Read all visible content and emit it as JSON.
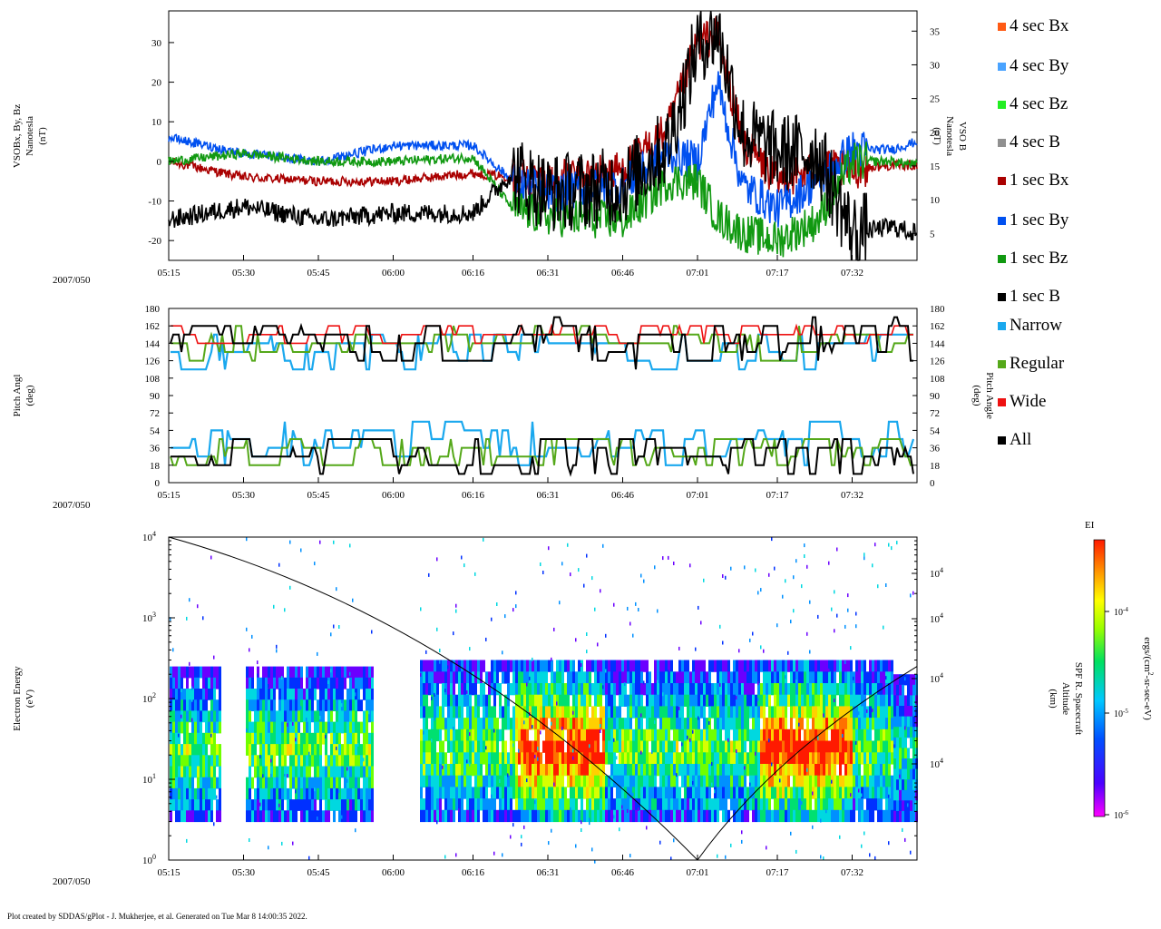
{
  "footer": "Plot created by SDDAS/gPlot - J. Mukherjee, et al.  Generated on Tue Mar 8 14:00:35 2022.",
  "date_label": "2007/050",
  "time_ticks": [
    "05:15",
    "05:30",
    "05:45",
    "06:00",
    "06:16",
    "06:31",
    "06:46",
    "07:01",
    "07:17",
    "07:32"
  ],
  "legend": [
    {
      "label": "4 sec Bx",
      "color": "#ff5a14"
    },
    {
      "label": "4 sec By",
      "color": "#4aa3ff"
    },
    {
      "label": "4 sec Bz",
      "color": "#22ee22"
    },
    {
      "label": "4 sec B",
      "color": "#909090"
    },
    {
      "label": "1 sec Bx",
      "color": "#aa0000"
    },
    {
      "label": "1 sec By",
      "color": "#0050f0"
    },
    {
      "label": "1 sec Bz",
      "color": "#119911"
    },
    {
      "label": "1 sec B",
      "color": "#000000"
    },
    {
      "label": "Narrow",
      "color": "#1aa8ee"
    },
    {
      "label": "Regular",
      "color": "#55a81a"
    },
    {
      "label": "Wide",
      "color": "#ee1111"
    },
    {
      "label": "All",
      "color": "#000000"
    }
  ],
  "chart_data": [
    {
      "type": "line",
      "ylabel_lines": [
        "VSOBx, By, Bz",
        "Nanotesla",
        "(nT)"
      ],
      "y2label_lines": [
        "VSO B",
        "Nanotesla",
        "(nT)"
      ],
      "ylim": [
        -25,
        38
      ],
      "yticks": [
        "30",
        "20",
        "10",
        "0",
        "-10",
        "-20"
      ],
      "y2lim": [
        1,
        38
      ],
      "y2ticks": [
        "35",
        "30",
        "25",
        "20",
        "15",
        "10",
        "5"
      ],
      "x": [
        "05:15",
        "05:30",
        "05:45",
        "06:00",
        "06:16",
        "06:24",
        "06:31",
        "06:46",
        "06:55",
        "07:01",
        "07:05",
        "07:10",
        "07:17",
        "07:25",
        "07:32",
        "07:40",
        "07:45"
      ],
      "series": [
        {
          "name": "1 sec Bx",
          "color": "#aa0000",
          "values": [
            0,
            -4,
            -5,
            -5,
            -3,
            -4,
            -5,
            -2,
            8,
            30,
            32,
            5,
            -5,
            -2,
            -2,
            -1,
            -1
          ]
        },
        {
          "name": "1 sec By",
          "color": "#0050f0",
          "values": [
            6,
            2,
            0,
            4,
            4,
            -5,
            -8,
            -6,
            2,
            0,
            20,
            -6,
            -12,
            -5,
            3,
            3,
            5
          ]
        },
        {
          "name": "1 sec Bz",
          "color": "#119911",
          "values": [
            0,
            2,
            0,
            0,
            1,
            -12,
            -14,
            -15,
            -5,
            -5,
            -14,
            -18,
            -20,
            -15,
            0,
            0,
            -1
          ]
        },
        {
          "name": "1 sec B",
          "color": "#000000",
          "values": [
            7,
            9,
            7,
            8,
            8,
            14,
            11,
            12,
            18,
            33,
            35,
            20,
            17,
            17,
            5,
            6,
            5
          ]
        }
      ]
    },
    {
      "type": "scatter",
      "ylabel_lines": [
        "Pitch Angl",
        "(deg)"
      ],
      "y2label_lines": [
        "Pitch Angle",
        "(deg)"
      ],
      "ylim": [
        0,
        180
      ],
      "yticks": [
        "180",
        "162",
        "144",
        "126",
        "108",
        "90",
        "72",
        "54",
        "36",
        "18",
        "0"
      ],
      "series": [
        {
          "name": "All",
          "color": "#000000"
        },
        {
          "name": "Narrow",
          "color": "#1aa8ee"
        },
        {
          "name": "Regular",
          "color": "#55a81a"
        },
        {
          "name": "Wide",
          "color": "#ee1111"
        }
      ]
    },
    {
      "type": "heatmap",
      "ylabel_lines": [
        "Electron Energy",
        "(eV)"
      ],
      "y2label_lines": [
        "SPF R. Spacecraft",
        "Altitude",
        "(km)"
      ],
      "yscale": "log",
      "ylim": [
        1,
        10000
      ],
      "ytick_mantissa": "10",
      "ytick_exps": [
        "4",
        "3",
        "2",
        "1",
        "0"
      ],
      "y2tick_exps": [
        "4",
        "4",
        "4",
        "4"
      ],
      "colorbar": {
        "title": "EI",
        "label_lines": [
          "ergs/(cm",
          "2",
          "-sr-sec-eV)"
        ],
        "tick_mantissa": "10",
        "tick_exps": [
          "-4",
          "-5",
          "-6"
        ]
      },
      "altitude_curve": {
        "x": [
          "05:15",
          "07:01",
          "07:45"
        ],
        "y": [
          10000,
          1,
          250
        ]
      }
    }
  ]
}
